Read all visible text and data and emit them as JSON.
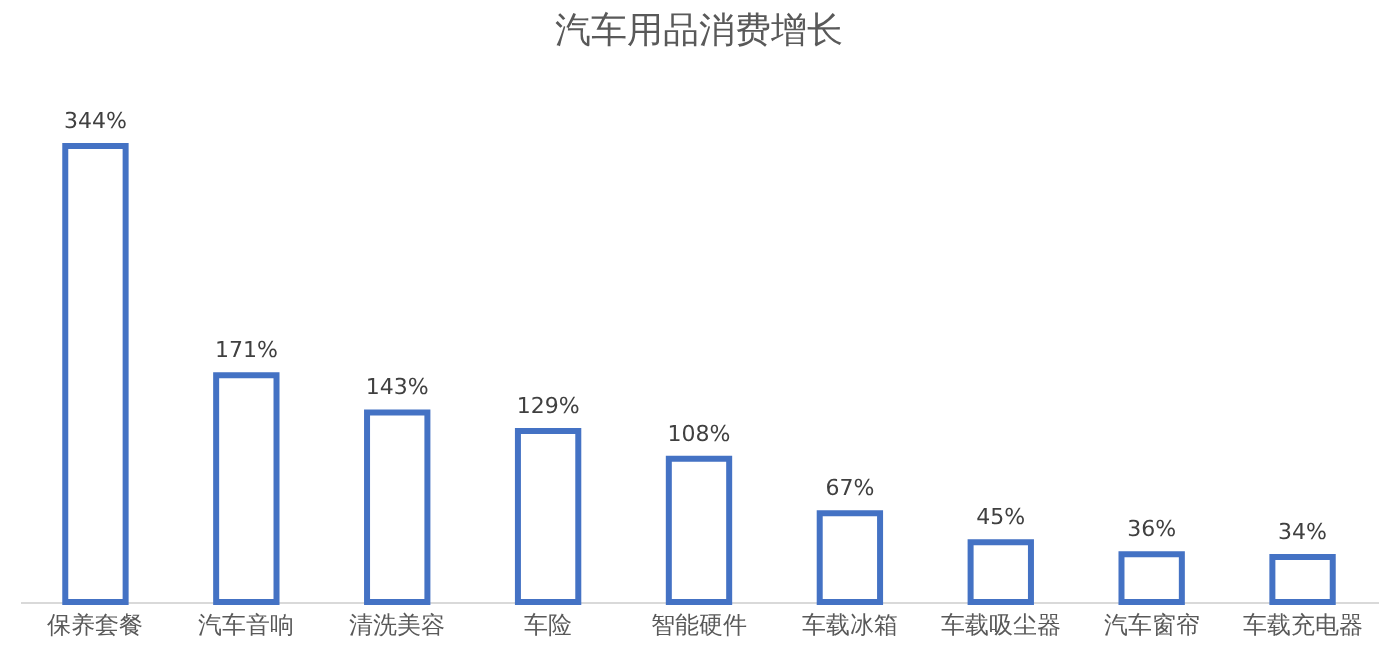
{
  "chart_data": {
    "type": "bar",
    "title": "汽车用品消费增长",
    "categories": [
      "保养套餐",
      "汽车音响",
      "清洗美容",
      "车险",
      "智能硬件",
      "车载冰箱",
      "车载吸尘器",
      "汽车窗帘",
      "车载充电器"
    ],
    "values": [
      344,
      171,
      143,
      129,
      108,
      67,
      45,
      36,
      34
    ],
    "value_labels": [
      "344%",
      "171%",
      "143%",
      "129%",
      "108%",
      "67%",
      "45%",
      "36%",
      "34%"
    ],
    "color": "#4472c4",
    "grid": false,
    "tick_labels": "x"
  }
}
